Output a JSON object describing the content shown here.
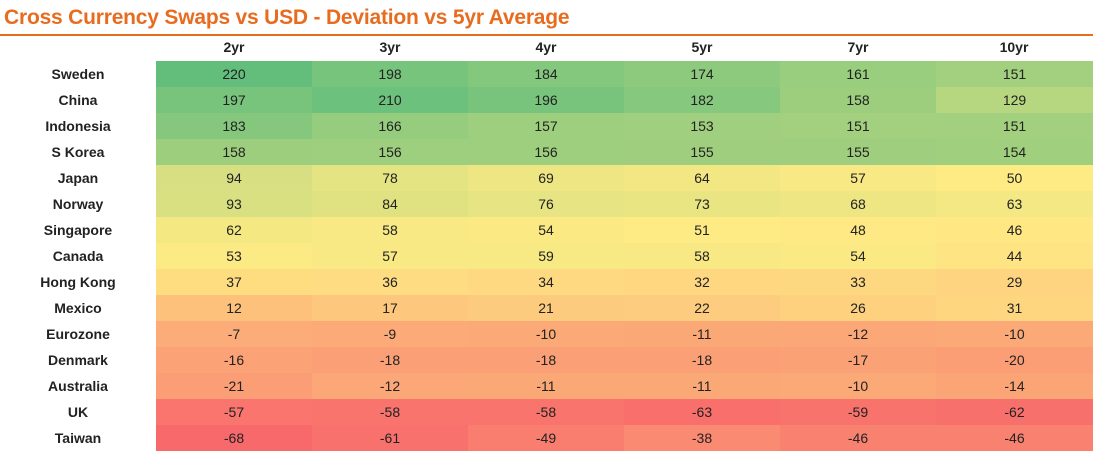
{
  "title": "Cross Currency Swaps vs USD - Deviation vs 5yr Average",
  "chart_data": {
    "type": "heatmap",
    "title": "Cross Currency Swaps vs USD - Deviation vs 5yr Average",
    "columns": [
      "2yr",
      "3yr",
      "4yr",
      "5yr",
      "7yr",
      "10yr"
    ],
    "rows": [
      {
        "label": "Sweden",
        "values": [
          220,
          198,
          184,
          174,
          161,
          151
        ]
      },
      {
        "label": "China",
        "values": [
          197,
          210,
          196,
          182,
          158,
          129
        ]
      },
      {
        "label": "Indonesia",
        "values": [
          183,
          166,
          157,
          153,
          151,
          151
        ]
      },
      {
        "label": "S Korea",
        "values": [
          158,
          156,
          156,
          155,
          155,
          154
        ]
      },
      {
        "label": "Japan",
        "values": [
          94,
          78,
          69,
          64,
          57,
          50
        ]
      },
      {
        "label": "Norway",
        "values": [
          93,
          84,
          76,
          73,
          68,
          63
        ]
      },
      {
        "label": "Singapore",
        "values": [
          62,
          58,
          54,
          51,
          48,
          46
        ]
      },
      {
        "label": "Canada",
        "values": [
          53,
          57,
          59,
          58,
          54,
          44
        ]
      },
      {
        "label": "Hong Kong",
        "values": [
          37,
          36,
          34,
          32,
          33,
          29
        ]
      },
      {
        "label": "Mexico",
        "values": [
          12,
          17,
          21,
          22,
          26,
          31
        ]
      },
      {
        "label": "Eurozone",
        "values": [
          -7,
          -9,
          -10,
          -11,
          -12,
          -10
        ]
      },
      {
        "label": "Denmark",
        "values": [
          -16,
          -18,
          -18,
          -18,
          -17,
          -20
        ]
      },
      {
        "label": "Australia",
        "values": [
          -21,
          -12,
          -11,
          -11,
          -10,
          -14
        ]
      },
      {
        "label": "UK",
        "values": [
          -57,
          -58,
          -58,
          -63,
          -59,
          -62
        ]
      },
      {
        "label": "Taiwan",
        "values": [
          -68,
          -61,
          -49,
          -38,
          -46,
          -46
        ]
      }
    ],
    "color_scale": {
      "low": "#f8696b",
      "mid": "#ffeb84",
      "high": "#63be7b"
    }
  }
}
